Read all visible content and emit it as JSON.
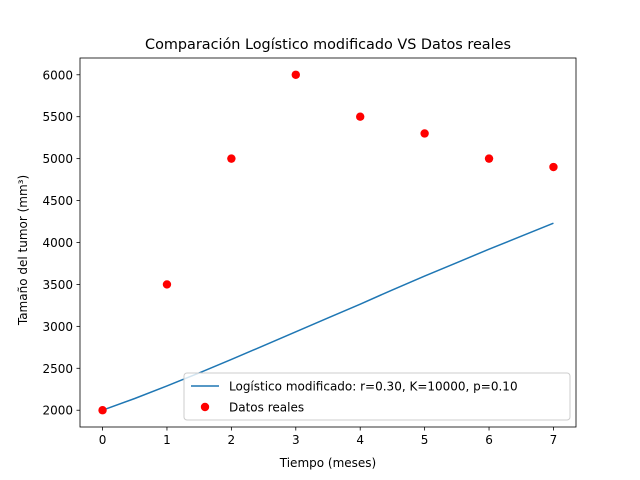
{
  "chart_data": {
    "type": "line",
    "title": "Comparación Logístico modificado VS Datos reales",
    "xlabel": "Tiempo (meses)",
    "ylabel": "Tamaño del tumor (mm³)",
    "xlim": [
      -0.35,
      7.35
    ],
    "ylim": [
      1800,
      6200
    ],
    "x_ticks": [
      0,
      1,
      2,
      3,
      4,
      5,
      6,
      7
    ],
    "y_ticks": [
      2000,
      2500,
      3000,
      3500,
      4000,
      4500,
      5000,
      5500,
      6000
    ],
    "grid": false,
    "legend_position": "lower-right",
    "series": [
      {
        "name": "Logístico modificado: r=0.30, K=10000, p=0.10",
        "kind": "line",
        "color": "#1f77b4",
        "x": [
          0,
          0.5,
          1,
          1.5,
          2,
          2.5,
          3,
          3.5,
          4,
          4.5,
          5,
          5.5,
          6,
          6.5,
          7
        ],
        "y": [
          2000,
          2140,
          2290,
          2445,
          2605,
          2770,
          2935,
          3100,
          3265,
          3435,
          3600,
          3760,
          3920,
          4075,
          4230
        ]
      },
      {
        "name": "Datos reales",
        "kind": "scatter",
        "color": "#ff0000",
        "x": [
          0,
          1,
          2,
          3,
          4,
          5,
          6,
          7
        ],
        "y": [
          2000,
          3500,
          5000,
          6000,
          5500,
          5300,
          5000,
          4900
        ]
      }
    ]
  }
}
